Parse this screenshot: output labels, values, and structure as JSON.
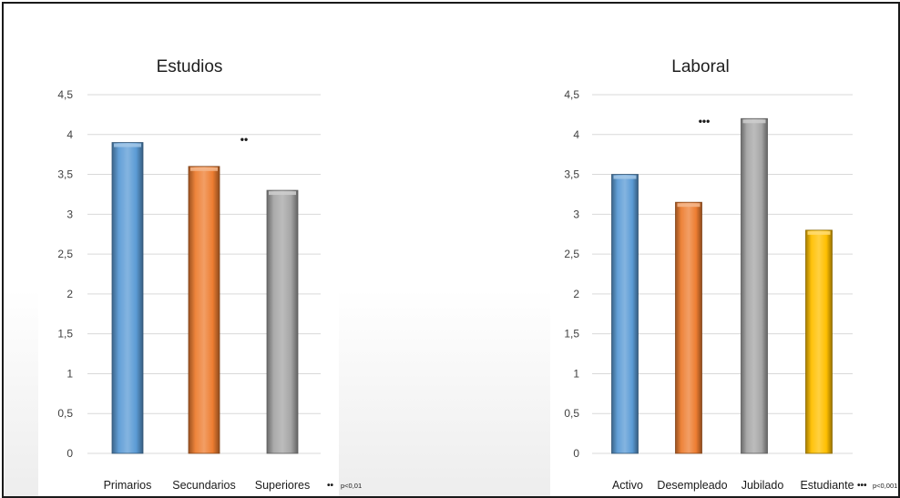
{
  "charts": [
    {
      "id": "estudios",
      "title": "Estudios",
      "significance_marker": "••",
      "footnote_marker": "••",
      "footnote_text": "p<0,01"
    },
    {
      "id": "laboral",
      "title": "Laboral",
      "significance_marker": "•••",
      "footnote_marker": "•••",
      "footnote_text": "p<0,001"
    }
  ],
  "chart_data": [
    {
      "type": "bar",
      "title": "Estudios",
      "xlabel": "",
      "ylabel": "",
      "categories": [
        "Primarios",
        "Secundarios",
        "Superiores"
      ],
      "values": [
        3.9,
        3.6,
        3.3
      ],
      "colors": [
        "#5b9bd5",
        "#ed7d31",
        "#a5a5a5"
      ],
      "ylim": [
        0,
        4.5
      ],
      "yticks": [
        "0",
        "0,5",
        "1",
        "1,5",
        "2",
        "2,5",
        "3",
        "3,5",
        "4",
        "4,5"
      ],
      "grid": true,
      "annotations": [
        "••",
        "•• p<0,01"
      ]
    },
    {
      "type": "bar",
      "title": "Laboral",
      "xlabel": "",
      "ylabel": "",
      "categories": [
        "Activo",
        "Desempleado",
        "Jubilado",
        "Estudiante"
      ],
      "values": [
        3.5,
        3.15,
        4.2,
        2.8
      ],
      "colors": [
        "#5b9bd5",
        "#ed7d31",
        "#a5a5a5",
        "#ffc000"
      ],
      "ylim": [
        0,
        4.5
      ],
      "yticks": [
        "0",
        "0,5",
        "1",
        "1,5",
        "2",
        "2,5",
        "3",
        "3,5",
        "4",
        "4,5"
      ],
      "grid": true,
      "annotations": [
        "•••",
        "••• p<0,001"
      ]
    }
  ]
}
